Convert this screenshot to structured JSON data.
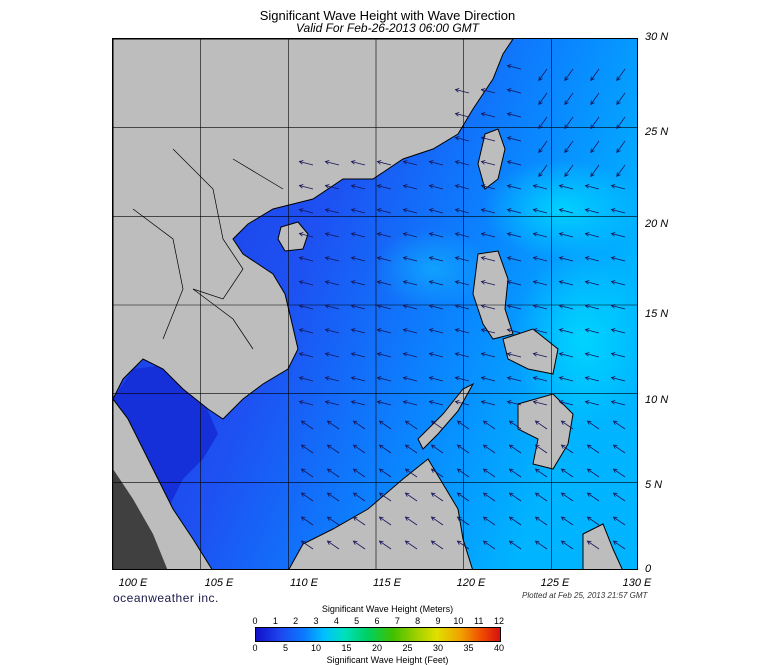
{
  "title": "Significant Wave Height with Wave Direction",
  "subtitle": "Valid For Feb-26-2013 06:00 GMT",
  "lat_labels": [
    "30 N",
    "25 N",
    "20 N",
    "15 N",
    "10 N",
    "5 N",
    "0"
  ],
  "lon_labels": [
    "100 E",
    "105 E",
    "110 E",
    "115 E",
    "120 E",
    "125 E",
    "130 E"
  ],
  "brand": "oceanweather inc.",
  "plotted": "Plotted at Feb 25, 2013 21:57 GMT",
  "colorbar": {
    "title_meters": "Significant Wave Height (Meters)",
    "title_feet": "Significant Wave Height (Feet)",
    "meters_ticks": [
      "0",
      "1",
      "2",
      "3",
      "4",
      "5",
      "6",
      "7",
      "8",
      "9",
      "10",
      "11",
      "12"
    ],
    "feet_ticks": [
      "0",
      "5",
      "10",
      "15",
      "20",
      "25",
      "30",
      "35",
      "40"
    ]
  },
  "map_extent": {
    "lon_min": 100,
    "lon_max": 130,
    "lat_min": 0,
    "lat_max": 30
  },
  "colors": {
    "land": "#bdbdbd",
    "sea_low": "#1e46f0",
    "sea_mid": "#0a7cff",
    "sea_high": "#00c8ff",
    "arrow": "#16165a"
  }
}
